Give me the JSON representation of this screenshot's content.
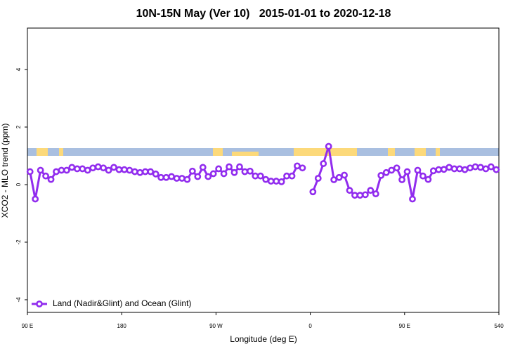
{
  "chart_data": {
    "type": "line",
    "title": "10N-15N May (Ver 10)   2015-01-01 to 2020-12-18",
    "xlabel": "Longitude (deg E)",
    "ylabel": "XCO2 - MLO trend (ppm)",
    "x": [
      92.5,
      97.5,
      102.5,
      107.5,
      112.5,
      117.5,
      122.5,
      127.5,
      132.5,
      137.5,
      142.5,
      147.5,
      152.5,
      157.5,
      162.5,
      167.5,
      172.5,
      177.5,
      182.5,
      187.5,
      192.5,
      197.5,
      202.5,
      207.5,
      212.5,
      217.5,
      222.5,
      227.5,
      232.5,
      237.5,
      242.5,
      247.5,
      252.5,
      257.5,
      262.5,
      267.5,
      272.5,
      277.5,
      282.5,
      287.5,
      292.5,
      297.5,
      302.5,
      307.5,
      312.5,
      317.5,
      322.5,
      327.5,
      332.5,
      337.5,
      342.5,
      347.5,
      352.5,
      357.5,
      362.5,
      367.5,
      372.5,
      377.5,
      382.5,
      387.5,
      392.5,
      397.5,
      402.5,
      407.5,
      412.5,
      417.5,
      422.5,
      427.5,
      432.5,
      437.5,
      442.5,
      447.5,
      452.5,
      457.5,
      462.5,
      467.5,
      472.5,
      477.5,
      482.5,
      487.5,
      492.5,
      497.5,
      502.5,
      507.5,
      512.5,
      517.5,
      522.5,
      527.5,
      532.5,
      537.5
    ],
    "series": [
      {
        "name": "Land (Nadir&Glint) and Ocean (Glint)",
        "color": "#912cee",
        "values": [
          0.45,
          -0.5,
          0.5,
          0.3,
          0.18,
          0.45,
          0.5,
          0.5,
          0.6,
          0.55,
          0.55,
          0.5,
          0.58,
          0.62,
          0.58,
          0.5,
          0.6,
          0.52,
          0.52,
          0.5,
          0.45,
          0.42,
          0.45,
          0.45,
          0.37,
          0.25,
          0.25,
          0.28,
          0.22,
          0.22,
          0.18,
          0.47,
          0.28,
          0.6,
          0.28,
          0.38,
          0.55,
          0.38,
          0.62,
          0.42,
          0.62,
          0.45,
          0.47,
          0.3,
          0.3,
          0.18,
          0.12,
          0.12,
          0.1,
          0.3,
          0.3,
          0.65,
          0.58,
          null,
          -0.25,
          0.22,
          0.73,
          1.33,
          0.17,
          0.25,
          0.33,
          -0.2,
          -0.37,
          -0.37,
          -0.35,
          -0.2,
          -0.32,
          0.32,
          0.42,
          0.5,
          0.58,
          0.17,
          0.45,
          -0.5,
          0.5,
          0.3,
          0.18,
          0.48,
          0.52,
          0.53,
          0.6,
          0.55,
          0.55,
          0.52,
          0.58,
          0.62,
          0.6,
          0.55,
          0.62,
          0.52
        ]
      }
    ],
    "xlim": [
      90,
      540
    ],
    "xticks": [
      {
        "value": 90,
        "label": "90 E"
      },
      180,
      {
        "value": 270,
        "label": "90 W"
      },
      {
        "value": 360,
        "label": "0"
      },
      {
        "value": 450,
        "label": "90 E"
      },
      540
    ],
    "ylim": [
      -4.44,
      5.44
    ],
    "yticks": [
      -4,
      -2,
      0,
      2,
      4
    ],
    "legend": "bottomleft"
  }
}
